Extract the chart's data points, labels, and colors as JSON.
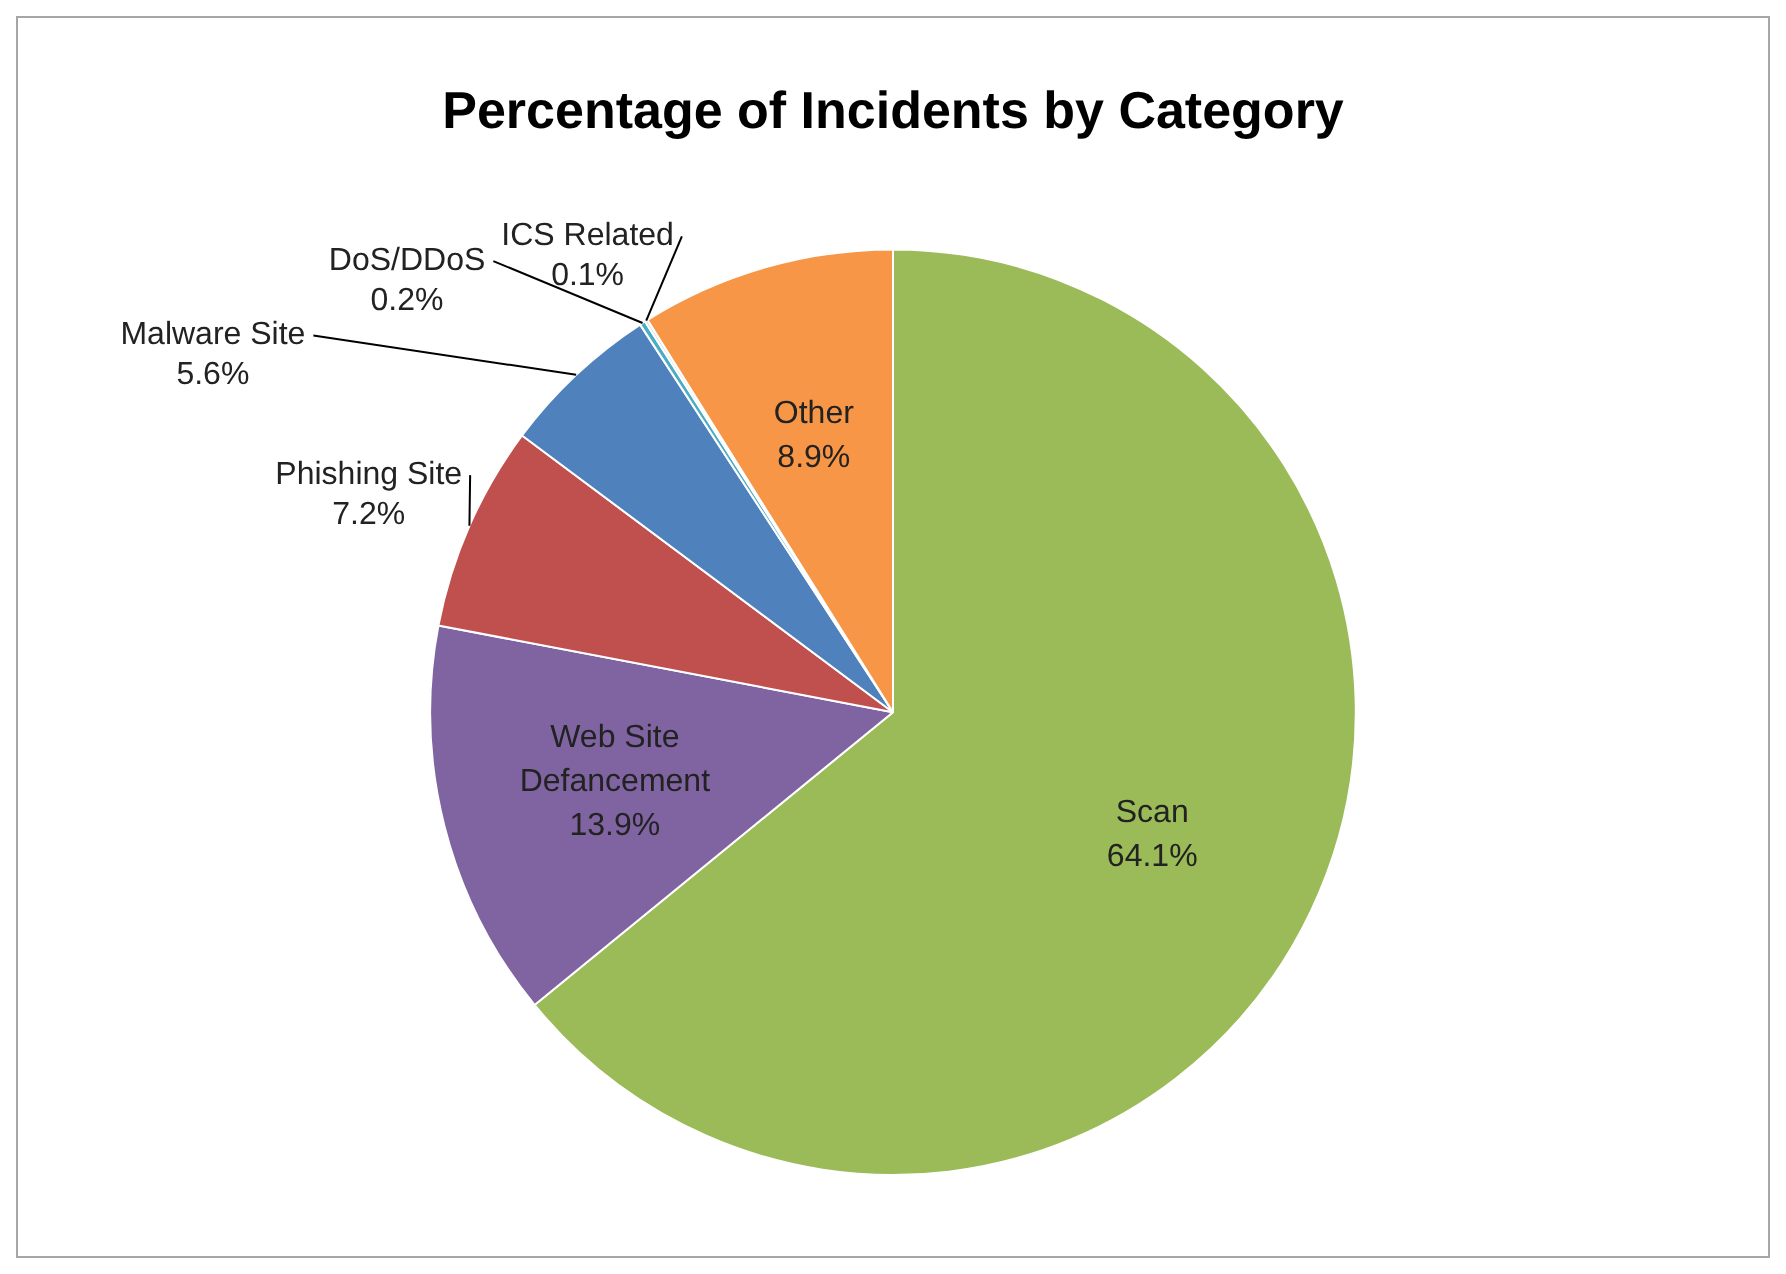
{
  "chart_data": {
    "type": "pie",
    "title": "Percentage of Incidents by Category",
    "categories": [
      "Scan",
      "Web Site Defancement",
      "Phishing Site",
      "Malware Site",
      "DoS/DDoS",
      "ICS Related",
      "Other"
    ],
    "values": [
      64.1,
      13.9,
      7.2,
      5.6,
      0.2,
      0.1,
      8.9
    ],
    "value_labels": [
      "64.1%",
      "13.9%",
      "7.2%",
      "5.6%",
      "0.2%",
      "0.1%",
      "8.9%"
    ],
    "colors": [
      "#9bbb59",
      "#8064a2",
      "#c0504d",
      "#4f81bd",
      "#4bacc6",
      "#d9d9d9",
      "#f79646"
    ],
    "legend": false
  }
}
